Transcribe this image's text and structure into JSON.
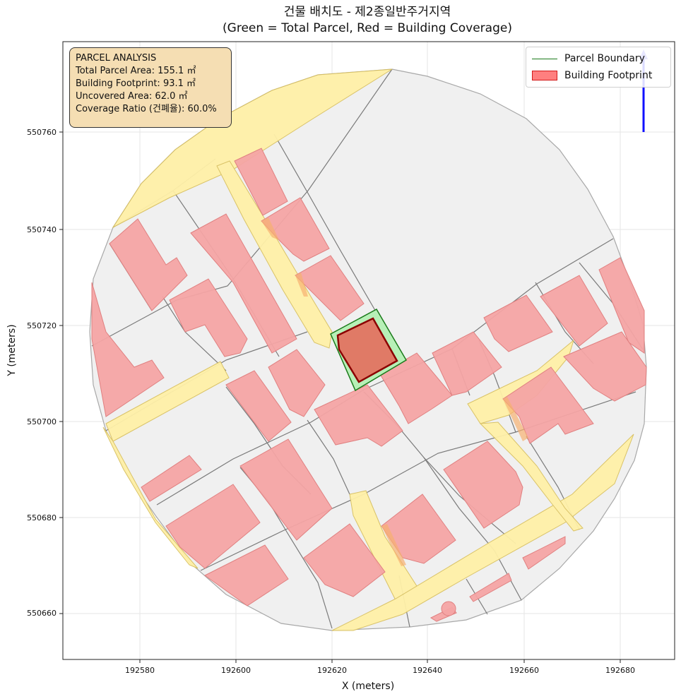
{
  "title": {
    "line1": "건물 배치도 - 제2종일반주거지역",
    "line2": "(Green = Total Parcel, Red = Building Coverage)"
  },
  "axes": {
    "x_label": "X (meters)",
    "y_label": "Y (meters)",
    "x_ticks": [
      "192580",
      "192600",
      "192620",
      "192640",
      "192660",
      "192680"
    ],
    "y_ticks": [
      "550660",
      "550680",
      "550700",
      "550720",
      "550740",
      "550760"
    ]
  },
  "analysis": {
    "header": "PARCEL ANALYSIS",
    "total": "Total Parcel Area: 155.1 ㎡",
    "footprint": "Building Footprint: 93.1 ㎡",
    "uncovered": "Uncovered Area: 62.0 ㎡",
    "coverage": "Coverage Ratio (건폐율): 60.0%"
  },
  "legend": {
    "items": [
      {
        "label": "Parcel Boundary",
        "symbol": "line",
        "color": "#1a7a1a"
      },
      {
        "label": "Building Footprint",
        "symbol": "patch",
        "color": "#ff0000"
      }
    ]
  },
  "colors": {
    "parcel_fill": "#f0f0f0",
    "road_fill": "#fff0a8",
    "building_fill": "#f4a4a4",
    "target_parcel": "#b7f0b7",
    "target_building": "#e07a66",
    "north_arrow": "#0000ff"
  },
  "chart_data": {
    "type": "map",
    "x_range": [
      192565,
      192692
    ],
    "y_range": [
      550650,
      550779
    ],
    "grid": true,
    "legend_position": "top-right",
    "target_parcel_area_m2": 155.1,
    "target_building_area_m2": 93.1,
    "coverage_ratio_percent": 60.0
  }
}
